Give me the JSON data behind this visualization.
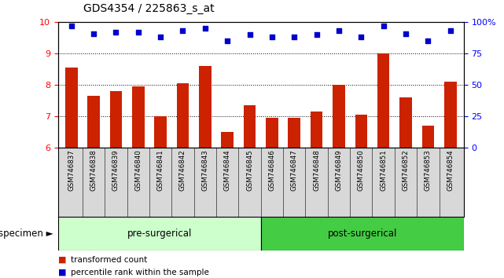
{
  "title": "GDS4354 / 225863_s_at",
  "specimens": [
    "GSM746837",
    "GSM746838",
    "GSM746839",
    "GSM746840",
    "GSM746841",
    "GSM746842",
    "GSM746843",
    "GSM746844",
    "GSM746845",
    "GSM746846",
    "GSM746847",
    "GSM746848",
    "GSM746849",
    "GSM746850",
    "GSM746851",
    "GSM746852",
    "GSM746853",
    "GSM746854"
  ],
  "bar_values": [
    8.55,
    7.65,
    7.8,
    7.95,
    7.0,
    8.05,
    8.6,
    6.5,
    7.35,
    6.95,
    6.95,
    7.15,
    8.0,
    7.05,
    9.0,
    7.6,
    6.7,
    8.1
  ],
  "dot_values": [
    97,
    91,
    92,
    92,
    88,
    93,
    95,
    85,
    90,
    88,
    88,
    90,
    93,
    88,
    97,
    91,
    85,
    93
  ],
  "ylim_left": [
    6,
    10
  ],
  "ylim_right": [
    0,
    100
  ],
  "yticks_left": [
    6,
    7,
    8,
    9,
    10
  ],
  "yticks_right": [
    0,
    25,
    50,
    75,
    100
  ],
  "ytick_labels_right": [
    "0",
    "25",
    "50",
    "75",
    "100%"
  ],
  "bar_color": "#cc2200",
  "dot_color": "#0000cc",
  "pre_surgical_count": 9,
  "post_surgical_count": 9,
  "pre_label": "pre-surgerical",
  "post_label": "post-surgerical",
  "pre_color": "#ccffcc",
  "post_color": "#44cc44",
  "specimen_label": "specimen",
  "legend_bar_label": "transformed count",
  "legend_dot_label": "percentile rank within the sample",
  "fig_width": 6.41,
  "fig_height": 3.54
}
